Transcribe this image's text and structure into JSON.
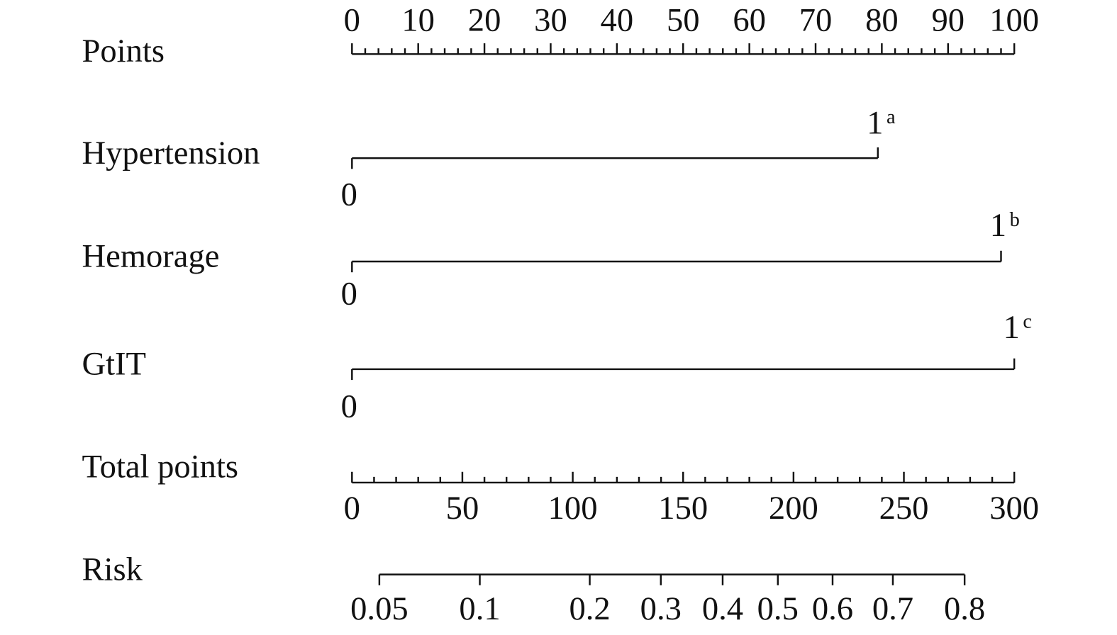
{
  "chart_data": {
    "type": "nomogram",
    "points": {
      "label": "Points",
      "lim": [
        0,
        100
      ],
      "ticks": [
        0,
        10,
        20,
        30,
        40,
        50,
        60,
        70,
        80,
        90,
        100
      ],
      "minor_ticks": [
        2,
        4,
        6,
        8,
        12,
        14,
        16,
        18,
        22,
        24,
        26,
        28,
        32,
        34,
        36,
        38,
        42,
        44,
        46,
        48,
        52,
        54,
        56,
        58,
        62,
        64,
        66,
        68,
        72,
        74,
        76,
        78,
        82,
        84,
        86,
        88,
        92,
        94,
        96,
        98
      ]
    },
    "variables": [
      {
        "name": "Hypertension",
        "levels": [
          {
            "label": "0",
            "points": 0
          },
          {
            "label": "1",
            "superscript": "a",
            "points": 79.4
          }
        ]
      },
      {
        "name": "Hemorage",
        "levels": [
          {
            "label": "0",
            "points": 0
          },
          {
            "label": "1",
            "superscript": "b",
            "points": 98
          }
        ]
      },
      {
        "name": "GtIT",
        "levels": [
          {
            "label": "0",
            "points": 0
          },
          {
            "label": "1",
            "superscript": "c",
            "points": 100
          }
        ]
      }
    ],
    "total_points": {
      "label": "Total points",
      "lim": [
        0,
        300
      ],
      "ticks": [
        0,
        50,
        100,
        150,
        200,
        250,
        300
      ],
      "minor_ticks": [
        10,
        20,
        30,
        40,
        60,
        70,
        80,
        90,
        110,
        120,
        130,
        140,
        160,
        170,
        180,
        190,
        210,
        220,
        230,
        240,
        260,
        270,
        280,
        290
      ]
    },
    "risk": {
      "label": "Risk",
      "ticks": [
        {
          "value": 0.05,
          "total_points": 12.4
        },
        {
          "value": 0.1,
          "total_points": 57.9
        },
        {
          "value": 0.2,
          "total_points": 107.7
        },
        {
          "value": 0.3,
          "total_points": 139.9
        },
        {
          "value": 0.4,
          "total_points": 167.9
        },
        {
          "value": 0.5,
          "total_points": 192.9
        },
        {
          "value": 0.6,
          "total_points": 217.7
        },
        {
          "value": 0.7,
          "total_points": 245
        },
        {
          "value": 0.8,
          "total_points": 277.5
        }
      ]
    }
  }
}
